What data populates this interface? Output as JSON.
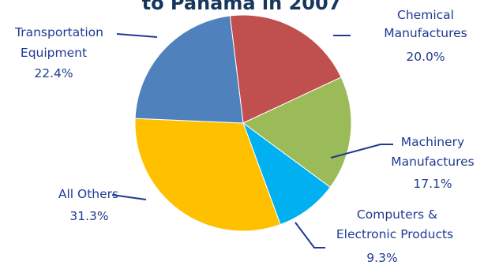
{
  "chart_data": {
    "type": "pie",
    "title": "to Panama in 2007",
    "slices": [
      {
        "label_lines": [
          "Chemical",
          "Manufactures"
        ],
        "percent_label": "20.0%",
        "value": 20.0,
        "color": "#C0504D"
      },
      {
        "label_lines": [
          "Machinery",
          "Manufactures"
        ],
        "percent_label": "17.1%",
        "value": 17.1,
        "color": "#9BBB59"
      },
      {
        "label_lines": [
          "Computers &",
          "Electronic Products"
        ],
        "percent_label": "9.3%",
        "value": 9.3,
        "color": "#00B0F0"
      },
      {
        "label_lines": [
          "All Others"
        ],
        "percent_label": "31.3%",
        "value": 31.3,
        "color": "#FFC000"
      },
      {
        "label_lines": [
          "Transportation",
          "Equipment"
        ],
        "percent_label": "22.4%",
        "value": 22.4,
        "color": "#4F81BD"
      }
    ]
  }
}
